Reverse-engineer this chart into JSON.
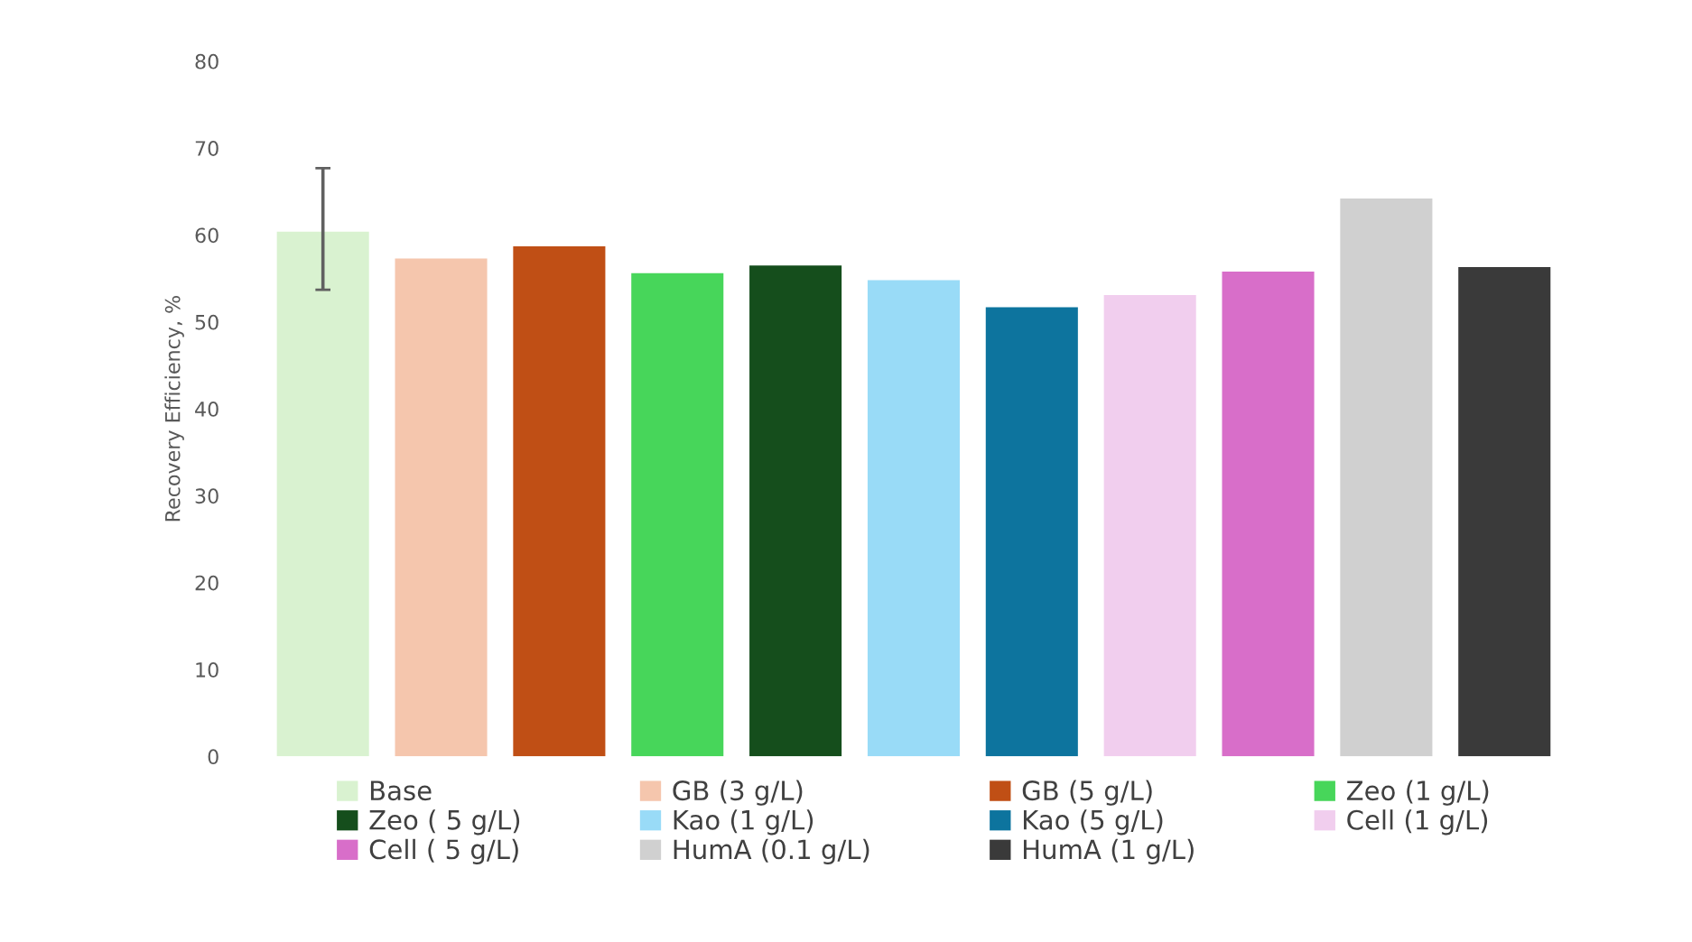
{
  "chart_data": {
    "type": "bar",
    "ylabel": "Recovery Efficiency, %",
    "categories": [
      null,
      null,
      null,
      null,
      null,
      null,
      null,
      null,
      null,
      null,
      null
    ],
    "stacked": true,
    "series": [
      {
        "name": "Base",
        "color": "#d9f2d0",
        "values": [
          60.4,
          null,
          null,
          null,
          null,
          null,
          null,
          null,
          null,
          null,
          null
        ],
        "errors": [
          [
            53.7,
            67.7
          ],
          null,
          null,
          null,
          null,
          null,
          null,
          null,
          null,
          null,
          null
        ]
      },
      {
        "name": "GB (3 g/L)",
        "color": "#f5c6ad",
        "values": [
          null,
          57.3,
          null,
          null,
          null,
          null,
          null,
          null,
          null,
          null,
          null
        ]
      },
      {
        "name": "GB (5 g/L)",
        "color": "#c04f15",
        "values": [
          null,
          null,
          58.7,
          null,
          null,
          null,
          null,
          null,
          null,
          null,
          null
        ]
      },
      {
        "name": "Zeo (1 g/L)",
        "color": "#47d65a",
        "values": [
          null,
          null,
          null,
          55.6,
          null,
          null,
          null,
          null,
          null,
          null,
          null
        ]
      },
      {
        "name": "Zeo ( 5 g/L)",
        "color": "#154e1c",
        "values": [
          null,
          null,
          null,
          null,
          56.5,
          null,
          null,
          null,
          null,
          null,
          null
        ]
      },
      {
        "name": "Kao (1 g/L)",
        "color": "#99dbf7",
        "values": [
          null,
          null,
          null,
          null,
          null,
          54.8,
          null,
          null,
          null,
          null,
          null
        ]
      },
      {
        "name": "Kao (5 g/L)",
        "color": "#0d749e",
        "values": [
          null,
          null,
          null,
          null,
          null,
          null,
          51.7,
          null,
          null,
          null,
          null
        ]
      },
      {
        "name": "Cell (1 g/L)",
        "color": "#f1ceee",
        "values": [
          null,
          null,
          null,
          null,
          null,
          null,
          null,
          53.1,
          null,
          null,
          null
        ]
      },
      {
        "name": "Cell ( 5 g/L)",
        "color": "#d86ec9",
        "values": [
          null,
          null,
          null,
          null,
          null,
          null,
          null,
          null,
          55.8,
          null,
          null
        ]
      },
      {
        "name": "HumA (0.1 g/L)",
        "color": "#d0d0d0",
        "values": [
          null,
          null,
          null,
          null,
          null,
          null,
          null,
          null,
          null,
          64.2,
          null
        ]
      },
      {
        "name": "HumA (1 g/L)",
        "color": "#3a3a3a",
        "values": [
          null,
          null,
          null,
          null,
          null,
          null,
          null,
          null,
          null,
          null,
          56.3
        ]
      }
    ],
    "ylim": [
      0,
      80
    ],
    "yticks": [
      0,
      10,
      20,
      30,
      40,
      50,
      60,
      70,
      80
    ],
    "tick_labels": "y",
    "grid": false,
    "legend": "bottom"
  }
}
